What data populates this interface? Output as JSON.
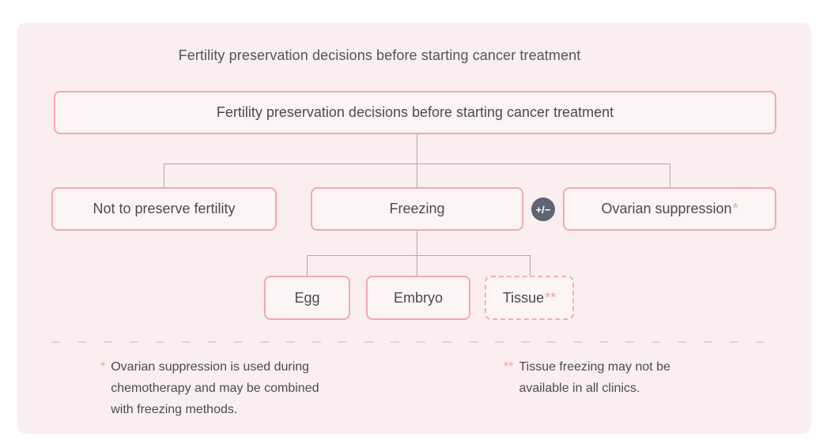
{
  "title": "Fertility preservation decisions before starting cancer treatment",
  "tree": {
    "root": {
      "label": "Fertility preservation decisions before starting cancer treatment"
    },
    "level1": [
      {
        "label": "Not to preserve fertility"
      },
      {
        "label": "Freezing"
      },
      {
        "label": "Ovarian suppression",
        "asterisk": "*"
      }
    ],
    "badge": "+/−",
    "level2": [
      {
        "label": "Egg"
      },
      {
        "label": "Embryo"
      },
      {
        "label": "Tissue",
        "asterisk": "**"
      }
    ]
  },
  "footnotes": [
    {
      "marker": "*",
      "text": "Ovarian suppression is used during\nchemotherapy and may be combined\nwith freezing methods."
    },
    {
      "marker": "**",
      "text": "Tissue freezing may not be\navailable in all clinics."
    }
  ],
  "colors": {
    "panel_background": "#FBEEF0",
    "node_fill": "#FDF4F5",
    "node_border": "#F3A7B3",
    "tissue_border_dashed": "#F2ACB9",
    "connector_gray": "#A9AAAF",
    "badge_background": "#5C6571",
    "asterisk_pink": "#EE9FAD",
    "text_dark": "#4A4A4F"
  }
}
